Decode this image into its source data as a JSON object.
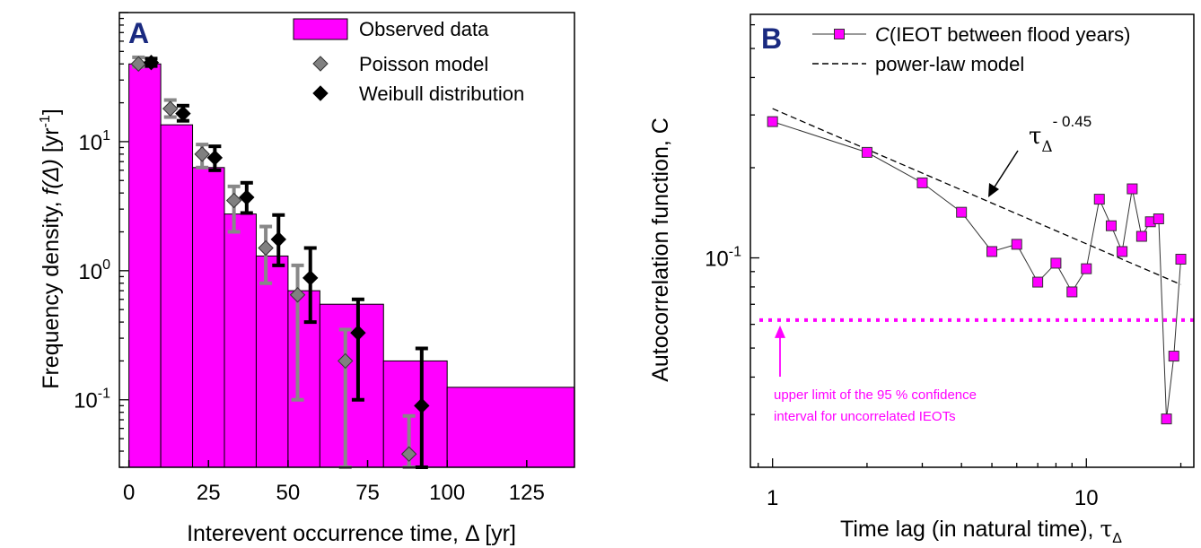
{
  "chart_data": [
    {
      "type": "bar",
      "panel_label": "A",
      "xlabel_prefix": "Interevent occurrence time, ",
      "xlabel_symbol": "Δ",
      "xlabel_suffix": " [yr]",
      "ylabel_prefix": "Frequency density, ",
      "ylabel_func": "f(Δ)",
      "ylabel_unit": " [yr",
      "ylabel_sup": "-1",
      "ylabel_close": "]",
      "xlim": [
        -3,
        140
      ],
      "ylim": [
        0.03,
        100
      ],
      "yscale": "log",
      "xticks": [
        0,
        25,
        50,
        75,
        100,
        125
      ],
      "xtick_labels": [
        "0",
        "25",
        "50",
        "75",
        "100",
        "125"
      ],
      "yticks": [
        {
          "base": "10",
          "exp": "1",
          "value": 10
        },
        {
          "base": "10",
          "exp": "0",
          "value": 1
        },
        {
          "base": "10",
          "exp": "-1",
          "value": 0.1
        }
      ],
      "legend": {
        "position": "top-right",
        "observed": "Observed data",
        "poisson": "Poisson model",
        "weibull": "Weibull distribution"
      },
      "bars": [
        {
          "x0": 0,
          "x1": 10,
          "value": 40
        },
        {
          "x0": 10,
          "x1": 20,
          "value": 13.5
        },
        {
          "x0": 20,
          "x1": 30,
          "value": 6.3
        },
        {
          "x0": 30,
          "x1": 40,
          "value": 2.75
        },
        {
          "x0": 40,
          "x1": 50,
          "value": 1.3
        },
        {
          "x0": 50,
          "x1": 60,
          "value": 0.7
        },
        {
          "x0": 60,
          "x1": 80,
          "value": 0.55
        },
        {
          "x0": 80,
          "x1": 100,
          "value": 0.2
        },
        {
          "x0": 100,
          "x1": 140,
          "value": 0.125
        }
      ],
      "series": [
        {
          "name": "Poisson model",
          "color": "#808080",
          "points": [
            {
              "x": 3,
              "y": 40,
              "lo": 38,
              "hi": 45
            },
            {
              "x": 13,
              "y": 18,
              "lo": 15.5,
              "hi": 21
            },
            {
              "x": 23,
              "y": 8,
              "lo": 6.3,
              "hi": 9.5
            },
            {
              "x": 33,
              "y": 3.5,
              "lo": 2.0,
              "hi": 4.5
            },
            {
              "x": 43,
              "y": 1.5,
              "lo": 0.8,
              "hi": 2.2
            },
            {
              "x": 53,
              "y": 0.65,
              "lo": 0.1,
              "hi": 1.1
            },
            {
              "x": 68,
              "y": 0.2,
              "lo": 0.03,
              "hi": 0.35
            },
            {
              "x": 88,
              "y": 0.038,
              "lo": 0.03,
              "hi": 0.075
            }
          ]
        },
        {
          "name": "Weibull distribution",
          "color": "#000000",
          "points": [
            {
              "x": 7,
              "y": 41,
              "lo": 38.5,
              "hi": 44
            },
            {
              "x": 17,
              "y": 16.5,
              "lo": 14.5,
              "hi": 19
            },
            {
              "x": 27,
              "y": 7.5,
              "lo": 6.0,
              "hi": 9.2
            },
            {
              "x": 37,
              "y": 3.7,
              "lo": 2.8,
              "hi": 4.8
            },
            {
              "x": 47,
              "y": 1.75,
              "lo": 1.1,
              "hi": 2.7
            },
            {
              "x": 57,
              "y": 0.88,
              "lo": 0.4,
              "hi": 1.5
            },
            {
              "x": 72,
              "y": 0.33,
              "lo": 0.1,
              "hi": 0.6
            },
            {
              "x": 92,
              "y": 0.09,
              "lo": 0.03,
              "hi": 0.25
            }
          ]
        }
      ],
      "colors": {
        "bar_fill": "#ff00ff",
        "bar_edge": "#000000"
      }
    },
    {
      "type": "line",
      "panel_label": "B",
      "xscale": "log",
      "yscale": "log",
      "xlim": [
        0.85,
        22
      ],
      "ylim": [
        0.02,
        0.65
      ],
      "xticks": [
        {
          "label": "1",
          "value": 1
        },
        {
          "label": "10",
          "value": 10
        }
      ],
      "yticks": [
        {
          "base": "10",
          "exp": "-1",
          "value": 0.1
        }
      ],
      "xlabel_text": "Time lag (in natural time), ",
      "xlabel_symbol": "τ",
      "xlabel_sub": "Δ",
      "ylabel": "Autocorrelation function, C",
      "legend": {
        "position": "top-left",
        "series_prefix": "C",
        "series_suffix": "(IEOT between flood years)",
        "model": "power-law model"
      },
      "series": [
        {
          "name": "C(IEOT between flood years)",
          "color": "#ff00ff",
          "x": [
            1,
            2,
            3,
            4,
            5,
            6,
            7,
            8,
            9,
            10,
            11,
            12,
            13,
            14,
            15,
            16,
            17,
            18,
            19,
            20
          ],
          "y": [
            0.285,
            0.225,
            0.178,
            0.142,
            0.105,
            0.111,
            0.083,
            0.096,
            0.077,
            0.092,
            0.157,
            0.128,
            0.105,
            0.17,
            0.118,
            0.132,
            0.135,
            0.029,
            0.047,
            0.099
          ]
        }
      ],
      "power_law": {
        "x": [
          1,
          20
        ],
        "y": [
          0.315,
          0.0815
        ]
      },
      "exponent_base": "τ",
      "exponent_sub": "Δ",
      "exponent_sup": "- 0.45",
      "confidence_level": 0.062,
      "confidence_line1": "upper limit of the 95 % confidence",
      "confidence_line2": "interval for uncorrelated IEOTs",
      "colors": {
        "marker": "#ff00ff",
        "confidence": "#ff00ff"
      }
    }
  ]
}
